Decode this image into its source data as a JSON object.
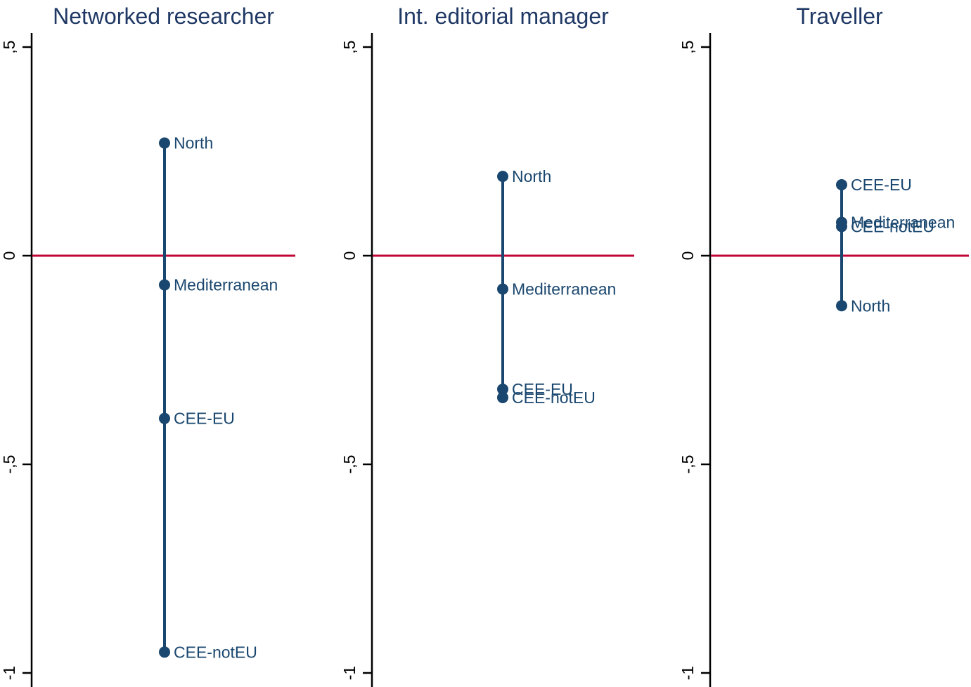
{
  "figure": {
    "background_color": "#ffffff",
    "description": "Three-panel dot range chart of researcher-type scores by European region"
  },
  "chart_data": {
    "type": "scatter",
    "subtype": "labelled-dot-range-panels",
    "grid": false,
    "legend": false,
    "decimal_separator": ",",
    "colors": {
      "marker": "#1a476f",
      "range_line": "#1a476f",
      "marker_label": "#1a476f",
      "title": "#1f3864",
      "zero_line": "#c10534",
      "axis": "#000000"
    },
    "y_axis": {
      "range": [
        -1.05,
        0.55
      ],
      "tick_label_rotation": "vertical",
      "ticks": [
        {
          "label": ",5",
          "value": 0.5
        },
        {
          "label": "0",
          "value": 0
        },
        {
          "label": "-,5",
          "value": -0.5
        },
        {
          "label": "-1",
          "value": -1
        }
      ]
    },
    "zero_reference_line": 0,
    "panels": [
      {
        "title": "Networked researcher",
        "points": [
          {
            "label": "North",
            "value": 0.27
          },
          {
            "label": "Mediterranean",
            "value": -0.07
          },
          {
            "label": "CEE-EU",
            "value": -0.39
          },
          {
            "label": "CEE-notEU",
            "value": -0.95
          }
        ]
      },
      {
        "title": "Int. editorial manager",
        "points": [
          {
            "label": "North",
            "value": 0.19
          },
          {
            "label": "Mediterranean",
            "value": -0.08
          },
          {
            "label": "CEE-EU",
            "value": -0.32
          },
          {
            "label": "CEE-notEU",
            "value": -0.34
          }
        ]
      },
      {
        "title": "Traveller",
        "points": [
          {
            "label": "CEE-EU",
            "value": 0.17
          },
          {
            "label": "Mediterranean",
            "value": 0.08
          },
          {
            "label": "CEE-notEU",
            "value": 0.07
          },
          {
            "label": "North",
            "value": -0.12
          }
        ]
      }
    ]
  }
}
